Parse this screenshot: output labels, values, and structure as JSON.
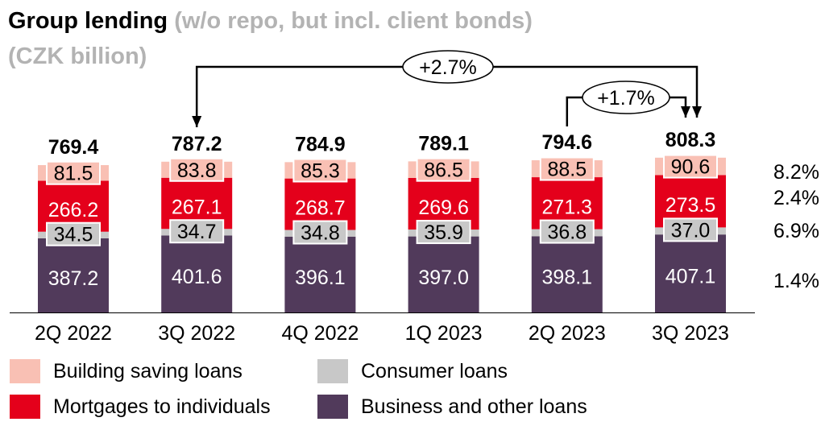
{
  "title": {
    "main": "Group lending",
    "sub": "(w/o repo, but incl. client bonds)",
    "unit": "(CZK billion)"
  },
  "colors": {
    "business": "#513a5b",
    "consumer": "#c8c8c8",
    "mortgages": "#e4001b",
    "building": "#f9c0b4",
    "axis": "#000000"
  },
  "chart_data": {
    "type": "bar",
    "stacked": true,
    "categories": [
      "2Q 2022",
      "3Q 2022",
      "4Q 2022",
      "1Q 2023",
      "2Q 2023",
      "3Q 2023"
    ],
    "series": [
      {
        "key": "business",
        "name": "Business and other loans",
        "values": [
          387.2,
          401.6,
          396.1,
          397.0,
          398.1,
          407.1
        ],
        "labels": [
          "387.2",
          "401.6",
          "396.1",
          "397.0",
          "398.1",
          "407.1"
        ],
        "growth": "1.4%"
      },
      {
        "key": "consumer",
        "name": "Consumer loans",
        "values": [
          34.5,
          34.7,
          34.8,
          35.9,
          36.8,
          37.0
        ],
        "labels": [
          "34.5",
          "34.7",
          "34.8",
          "35.9",
          "36.8",
          "37.0"
        ],
        "growth": "6.9%"
      },
      {
        "key": "mortgages",
        "name": "Mortgages to individuals",
        "values": [
          266.2,
          267.1,
          268.7,
          269.6,
          271.3,
          273.5
        ],
        "labels": [
          "266.2",
          "267.1",
          "268.7",
          "269.6",
          "271.3",
          "273.5"
        ],
        "growth": "2.4%"
      },
      {
        "key": "building",
        "name": "Building saving loans",
        "values": [
          81.5,
          83.8,
          85.3,
          86.5,
          88.5,
          90.6
        ],
        "labels": [
          "81.5",
          "83.8",
          "85.3",
          "86.5",
          "88.5",
          "90.6"
        ],
        "growth": "8.2%"
      }
    ],
    "totals": [
      769.4,
      787.2,
      784.9,
      789.1,
      794.6,
      808.3
    ],
    "total_labels": [
      "769.4",
      "787.2",
      "784.9",
      "789.1",
      "794.6",
      "808.3"
    ],
    "annotations": [
      {
        "text": "+2.7%",
        "from": "3Q 2022",
        "to": "3Q 2023"
      },
      {
        "text": "+1.7%",
        "from": "2Q 2023",
        "to": "3Q 2023"
      }
    ],
    "legend": [
      {
        "key": "building",
        "label": "Building saving loans"
      },
      {
        "key": "consumer",
        "label": "Consumer loans"
      },
      {
        "key": "mortgages",
        "label": "Mortgages to individuals"
      },
      {
        "key": "business",
        "label": "Business and other loans"
      }
    ]
  }
}
